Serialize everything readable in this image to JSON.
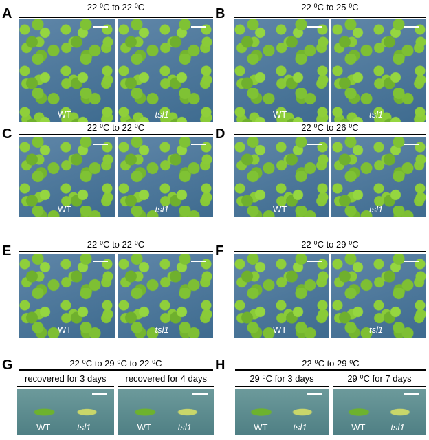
{
  "panels": [
    {
      "label": "A",
      "title": "22 ⁰C to 22 ⁰C",
      "images": [
        {
          "caption": "WT"
        },
        {
          "caption": "tsl1"
        }
      ]
    },
    {
      "label": "B",
      "title": "22 ⁰C to 25 ⁰C",
      "images": [
        {
          "caption": "WT"
        },
        {
          "caption": "tsl1"
        }
      ]
    },
    {
      "label": "C",
      "title": "22 ⁰C to 22 ⁰C",
      "images": [
        {
          "caption": "WT"
        },
        {
          "caption": "tsl1"
        }
      ]
    },
    {
      "label": "D",
      "title": "22 ⁰C to 26 ⁰C",
      "images": [
        {
          "caption": "WT"
        },
        {
          "caption": "tsl1"
        }
      ]
    },
    {
      "label": "E",
      "title": "22 ⁰C to 22 ⁰C",
      "images": [
        {
          "caption": "WT"
        },
        {
          "caption": "tsl1"
        }
      ]
    },
    {
      "label": "F",
      "title": "22 ⁰C to 29 ⁰C",
      "images": [
        {
          "caption": "WT"
        },
        {
          "caption": "tsl1"
        }
      ]
    },
    {
      "label": "G",
      "title": "22 ⁰C  to  29 ⁰C to 22 ⁰C",
      "sub": [
        "recovered for 3 days",
        "recovered for 4 days"
      ],
      "images": [
        {
          "captions": [
            "WT",
            "tsl1"
          ]
        },
        {
          "captions": [
            "WT",
            "tsl1"
          ]
        }
      ]
    },
    {
      "label": "H",
      "title": "22 ⁰C  to  29 ⁰C",
      "sub": [
        "29 ⁰C for 3 days",
        "29 ⁰C for 7 days"
      ],
      "images": [
        {
          "captions": [
            "WT",
            "tsl1"
          ]
        },
        {
          "captions": [
            "WT",
            "tsl1"
          ]
        }
      ]
    }
  ]
}
